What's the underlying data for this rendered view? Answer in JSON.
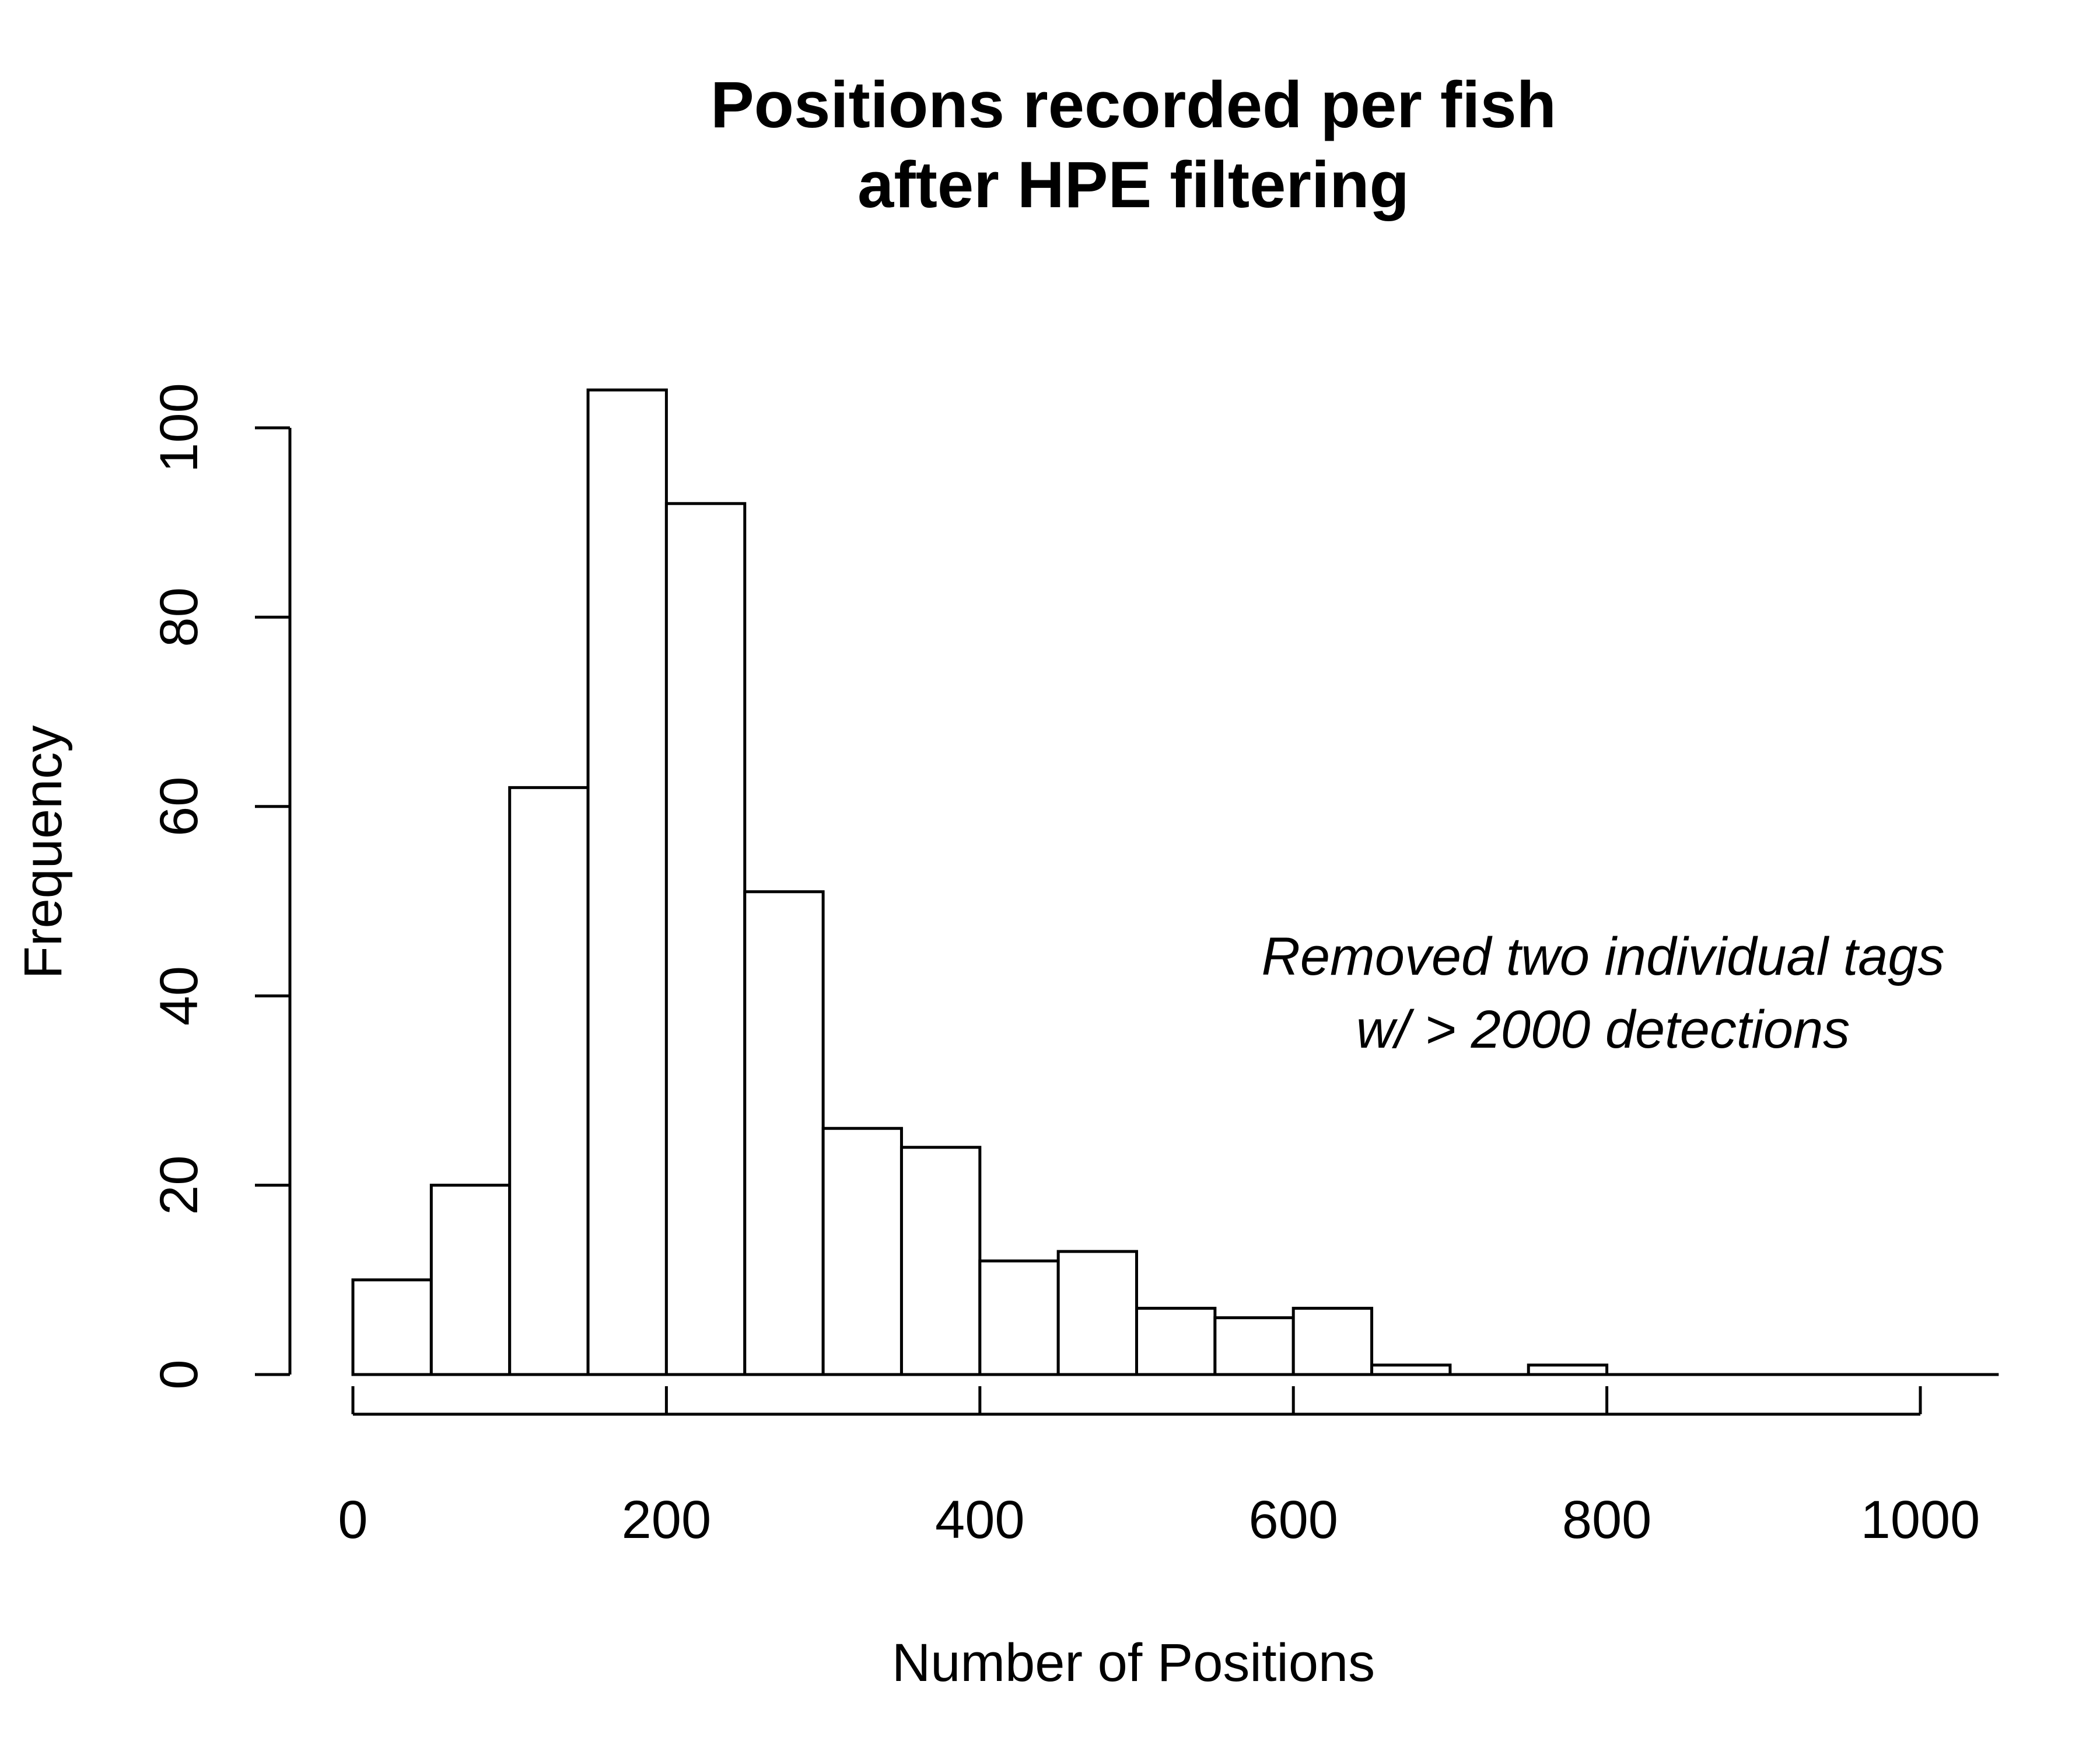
{
  "chart_data": {
    "type": "bar",
    "title_lines": [
      "Positions recorded per fish",
      "after HPE filtering"
    ],
    "xlabel": "Number of Positions",
    "ylabel": "Frequency",
    "annotation_lines": [
      "Removed two individual tags",
      "w/ > 2000 detections"
    ],
    "bin_width": 50,
    "bins": [
      {
        "start": 0,
        "end": 50,
        "count": 10
      },
      {
        "start": 50,
        "end": 100,
        "count": 20
      },
      {
        "start": 100,
        "end": 150,
        "count": 62
      },
      {
        "start": 150,
        "end": 200,
        "count": 104
      },
      {
        "start": 200,
        "end": 250,
        "count": 92
      },
      {
        "start": 250,
        "end": 300,
        "count": 51
      },
      {
        "start": 300,
        "end": 350,
        "count": 26
      },
      {
        "start": 350,
        "end": 400,
        "count": 24
      },
      {
        "start": 400,
        "end": 450,
        "count": 12
      },
      {
        "start": 450,
        "end": 500,
        "count": 13
      },
      {
        "start": 500,
        "end": 550,
        "count": 7
      },
      {
        "start": 550,
        "end": 600,
        "count": 6
      },
      {
        "start": 600,
        "end": 650,
        "count": 7
      },
      {
        "start": 650,
        "end": 700,
        "count": 1
      },
      {
        "start": 700,
        "end": 750,
        "count": 0
      },
      {
        "start": 750,
        "end": 800,
        "count": 1
      },
      {
        "start": 800,
        "end": 850,
        "count": 0
      },
      {
        "start": 850,
        "end": 900,
        "count": 0
      },
      {
        "start": 900,
        "end": 950,
        "count": 0
      },
      {
        "start": 950,
        "end": 1000,
        "count": 0
      },
      {
        "start": 1000,
        "end": 1050,
        "count": 0
      }
    ],
    "xticks": [
      0,
      200,
      400,
      600,
      800,
      1000
    ],
    "yticks": [
      0,
      20,
      40,
      60,
      80,
      100
    ],
    "xlim": [
      0,
      1000
    ],
    "ylim": [
      0,
      104
    ],
    "grid": false
  }
}
